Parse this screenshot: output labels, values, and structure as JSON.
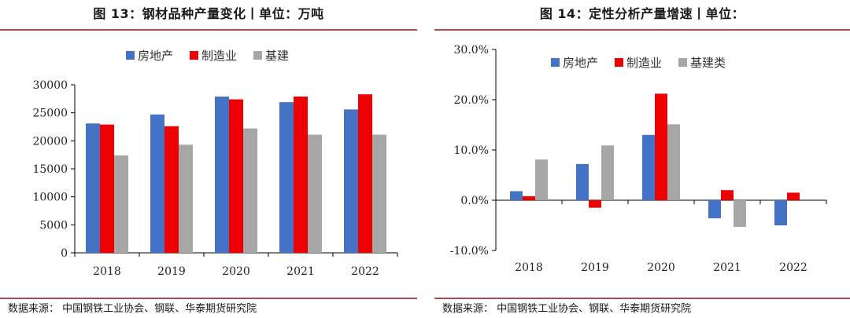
{
  "colors": {
    "real_estate": "#4472C4",
    "manufacturing": "#EE0000",
    "infrastructure": "#A6A6A6",
    "rule": "#b04a4a"
  },
  "left": {
    "title": "图 13：钢材品种产量变化丨单位：万吨",
    "source": "数据来源：  中国钢铁工业协会、钢联、华泰期货研究院"
  },
  "right": {
    "title": "图 14：定性分析产量增速丨单位：",
    "source": "数据来源：  中国钢铁工业协会、钢联、华泰期货研究院"
  },
  "chart_data": [
    {
      "type": "bar",
      "title": "图 13：钢材品种产量变化丨单位：万吨",
      "categories": [
        "2018",
        "2019",
        "2020",
        "2021",
        "2022"
      ],
      "series": [
        {
          "name": "房地产",
          "color": "#4472C4",
          "values": [
            23100,
            24700,
            27900,
            26900,
            25600
          ]
        },
        {
          "name": "制造业",
          "color": "#EE0000",
          "values": [
            22900,
            22600,
            27400,
            27900,
            28300
          ]
        },
        {
          "name": "基建",
          "color": "#A6A6A6",
          "values": [
            17400,
            19300,
            22200,
            21100,
            21100
          ]
        }
      ],
      "ylim": [
        0,
        30000
      ],
      "yticks": [
        0,
        5000,
        10000,
        15000,
        20000,
        25000,
        30000
      ],
      "ytick_labels": [
        "0",
        "5000",
        "10000",
        "15000",
        "20000",
        "25000",
        "30000"
      ],
      "legend_position": "top-center",
      "grid": false
    },
    {
      "type": "bar",
      "title": "图 14：定性分析产量增速丨单位：",
      "categories": [
        "2018",
        "2019",
        "2020",
        "2021",
        "2022"
      ],
      "series": [
        {
          "name": "房地产",
          "color": "#4472C4",
          "values": [
            1.8,
            7.2,
            13.0,
            -3.6,
            -5.0
          ]
        },
        {
          "name": "制造业",
          "color": "#EE0000",
          "values": [
            0.8,
            -1.5,
            21.2,
            2.0,
            1.5
          ]
        },
        {
          "name": "基建类",
          "color": "#A6A6A6",
          "values": [
            8.1,
            10.9,
            15.1,
            -5.3,
            0
          ]
        }
      ],
      "ylim": [
        -10,
        30
      ],
      "yticks": [
        -10,
        0,
        10,
        20,
        30
      ],
      "ytick_labels": [
        "-10.0%",
        "0.0%",
        "10.0%",
        "20.0%",
        "30.0%"
      ],
      "legend_position": "top-center",
      "grid": false
    }
  ]
}
